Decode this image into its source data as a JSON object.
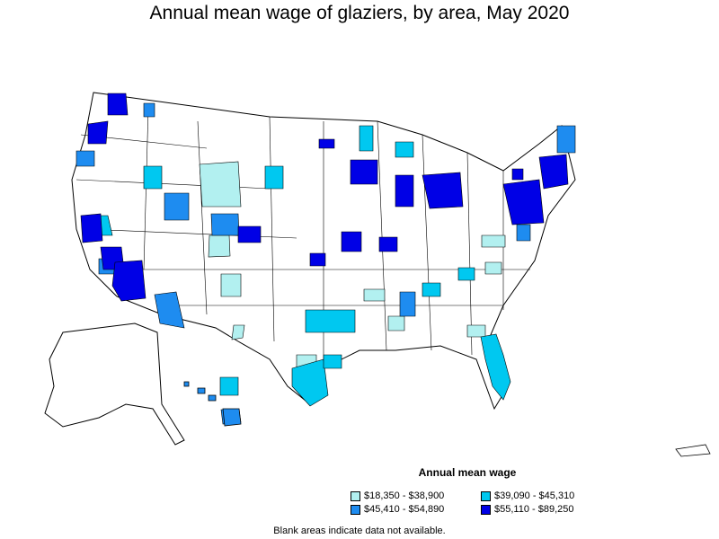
{
  "title": "Annual mean wage of glaziers, by area, May 2020",
  "legend": {
    "title": "Annual mean wage",
    "items": [
      {
        "label": "$18,350 - $38,900",
        "color": "#b2f0f0"
      },
      {
        "label": "$39,090 - $45,310",
        "color": "#00c8f0"
      },
      {
        "label": "$45,410 - $54,890",
        "color": "#1e8cf0"
      },
      {
        "label": "$55,110 - $89,250",
        "color": "#0000e6"
      }
    ]
  },
  "footnote": "Blank areas indicate data not available.",
  "colors": {
    "outline": "#000000",
    "no_data": "#ffffff"
  }
}
